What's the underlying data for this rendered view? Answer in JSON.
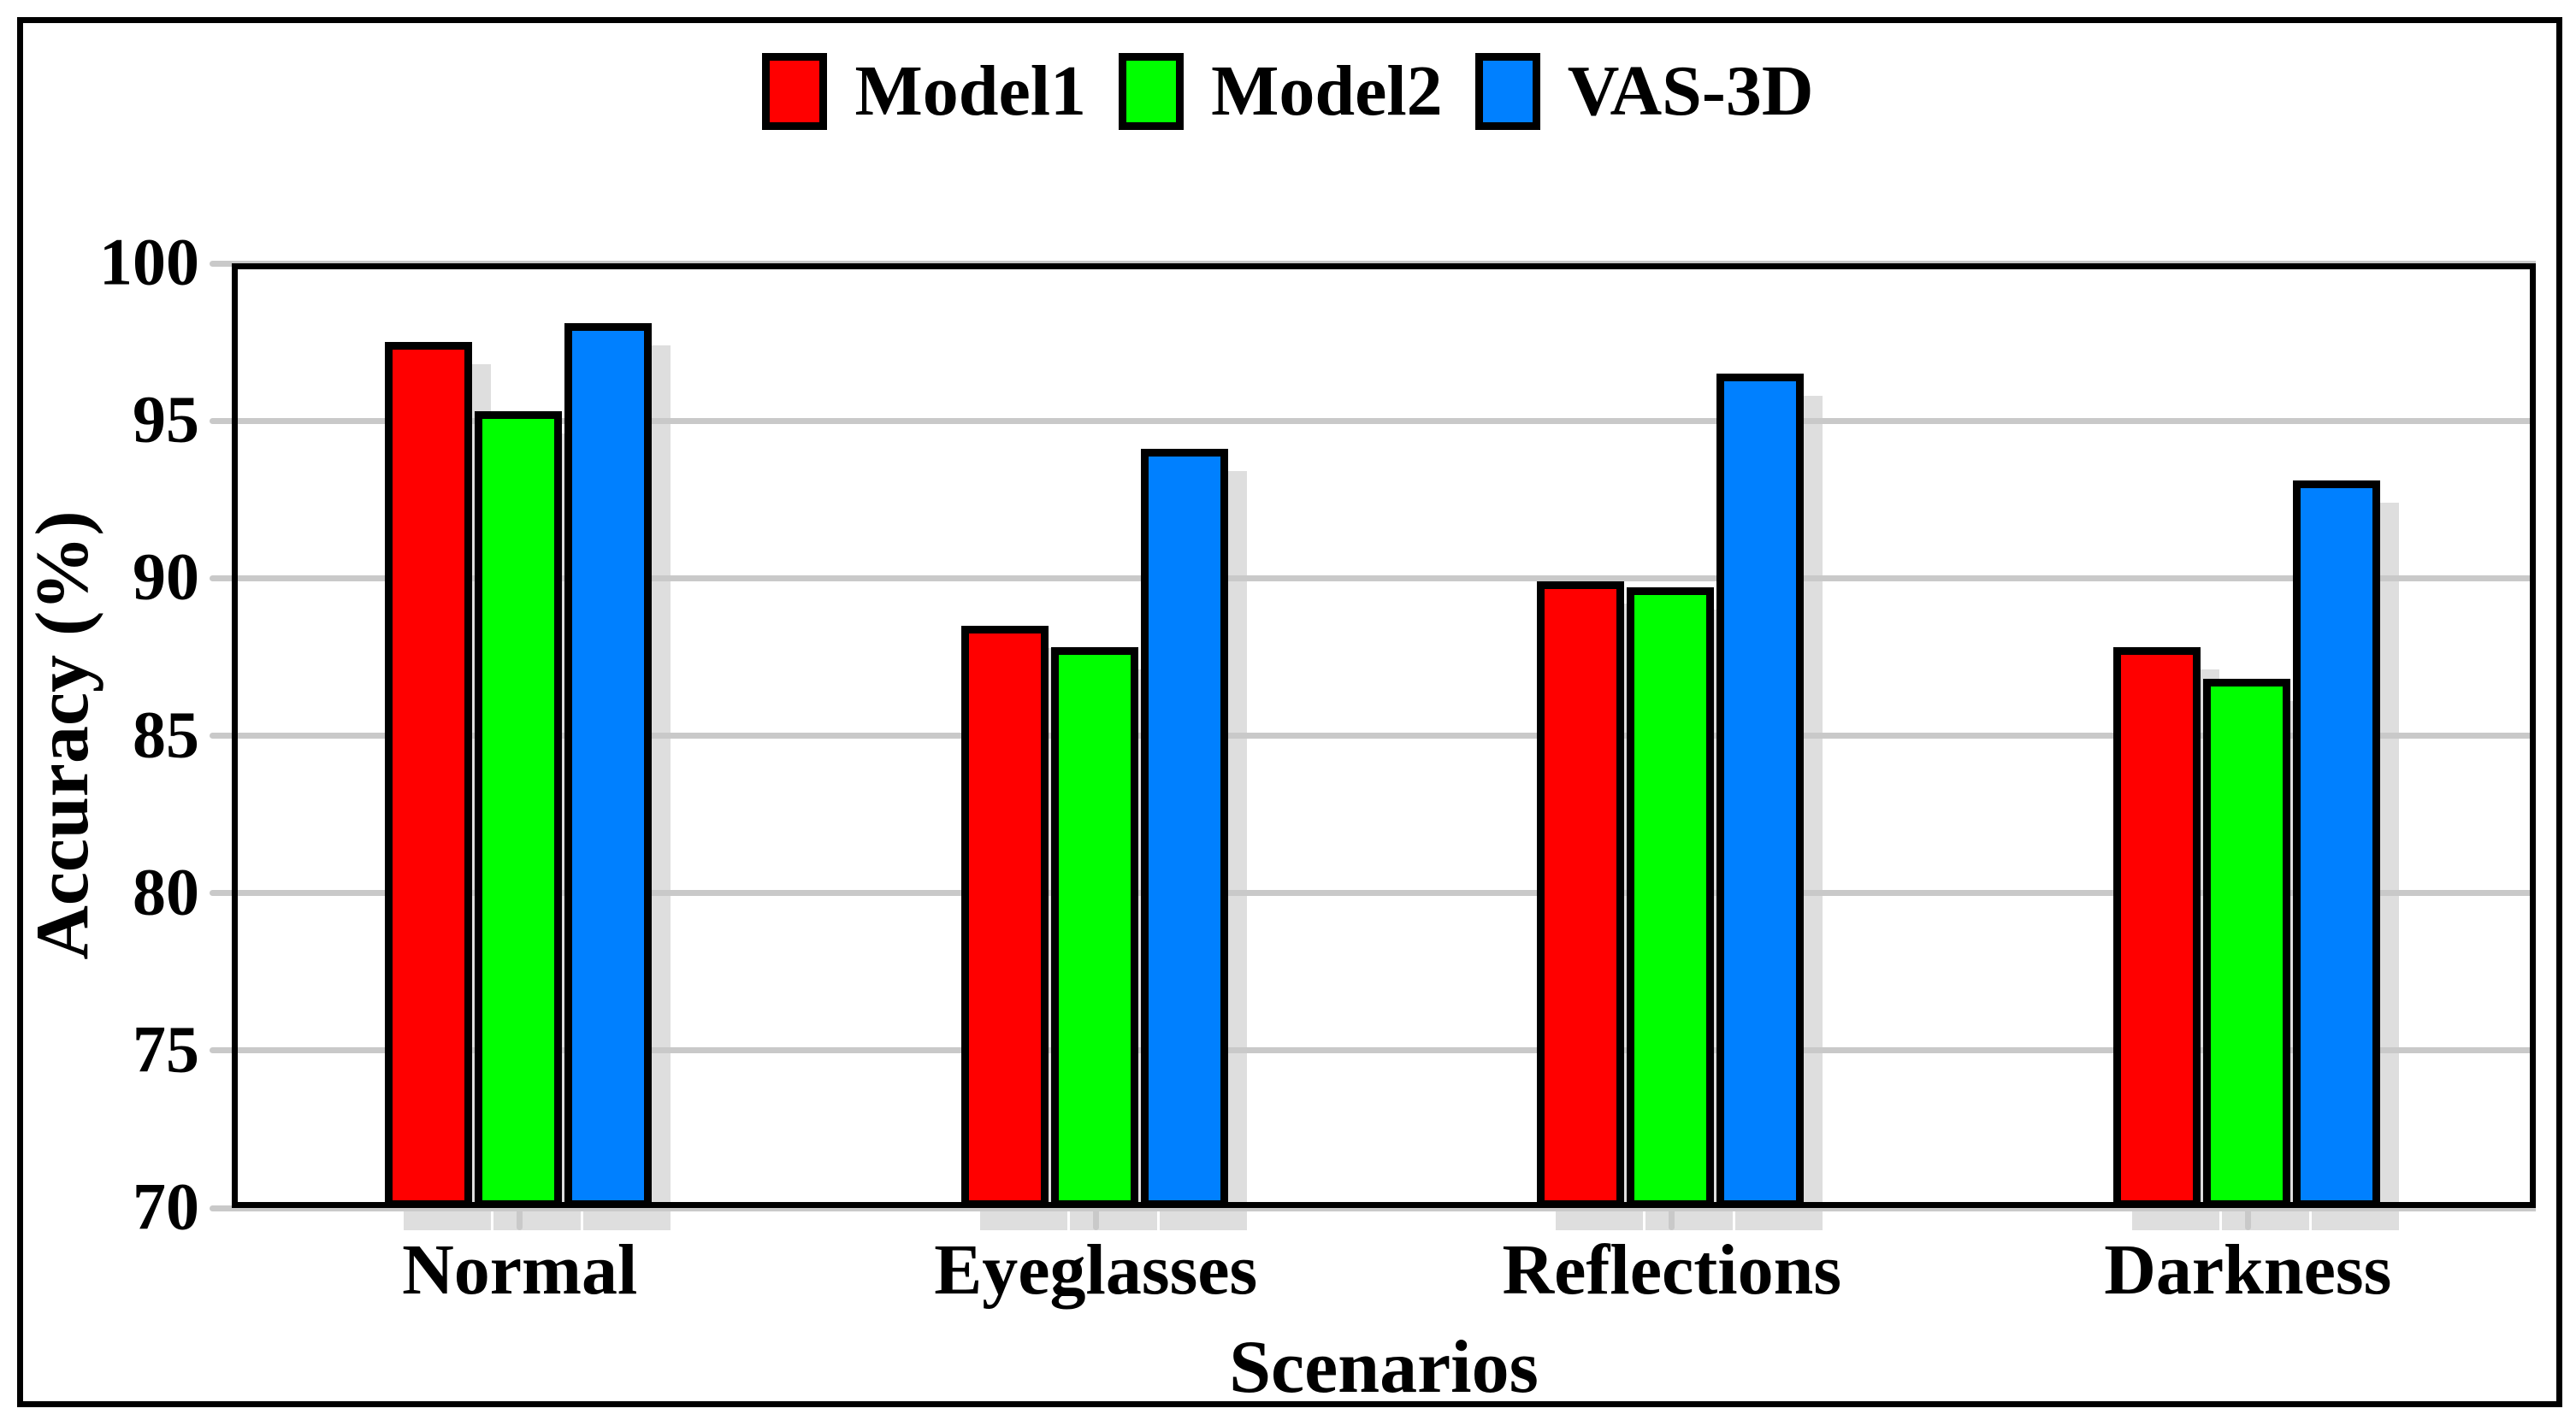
{
  "chart_data": {
    "type": "bar",
    "title": "",
    "categories": [
      "Normal",
      "Eyeglasses",
      "Reflections",
      "Darkness"
    ],
    "series": [
      {
        "name": "Model1",
        "color": "#FF0000",
        "values": [
          97.5,
          88.5,
          89.9,
          87.8
        ]
      },
      {
        "name": "Model2",
        "color": "#00FF00",
        "values": [
          95.3,
          87.8,
          89.7,
          86.8
        ]
      },
      {
        "name": "VAS-3D",
        "color": "#0080FF",
        "values": [
          98.1,
          94.1,
          96.5,
          93.1
        ]
      }
    ],
    "xlabel": "Scenarios",
    "ylabel": "Accuracy (%)",
    "ylim": [
      70,
      100
    ],
    "yticks": [
      70,
      75,
      80,
      85,
      90,
      95,
      100
    ],
    "grid": true,
    "legend_position": "top",
    "style": {
      "grid_color": "#C9C9C9",
      "shadow_color": "#DEDEDE",
      "bar_border_color": "#000000",
      "frame_color": "#000000",
      "background": "#FFFFFF"
    }
  }
}
